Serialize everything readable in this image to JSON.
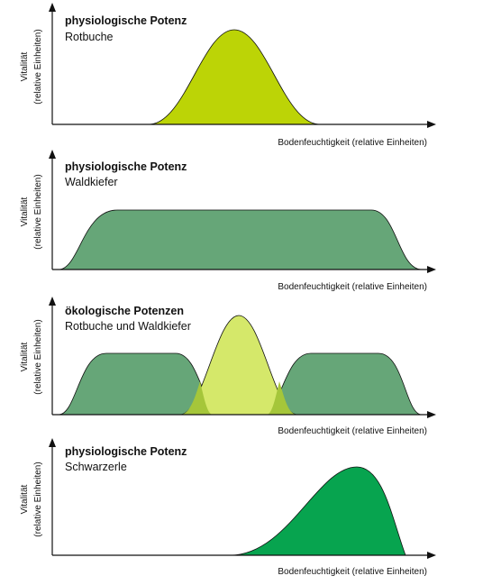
{
  "colors": {
    "rotbuche": "#bcd406",
    "waldkiefer": "#66a678",
    "rotbuche_light": "#d5e86a",
    "overlap": "#a5c63a",
    "schwarzerle": "#07a44f",
    "axis": "#111111"
  },
  "panels": [
    {
      "title": "physiologische Potenz",
      "subtitle": "Rotbuche",
      "y_label_line1": "Vitalität",
      "y_label_line2": "(relative Einheiten)",
      "x_label": "Bodenfeuchtigkeit (relative Einheiten)"
    },
    {
      "title": "physiologische Potenz",
      "subtitle": "Waldkiefer",
      "y_label_line1": "Vitalität",
      "y_label_line2": "(relative Einheiten)",
      "x_label": "Bodenfeuchtigkeit (relative Einheiten)"
    },
    {
      "title": "ökologische Potenzen",
      "subtitle": "Rotbuche und Waldkiefer",
      "y_label_line1": "Vitalität",
      "y_label_line2": "(relative Einheiten)",
      "x_label": "Bodenfeuchtigkeit (relative Einheiten)"
    },
    {
      "title": "physiologische Potenz",
      "subtitle": "Schwarzerle",
      "y_label_line1": "Vitalität",
      "y_label_line2": "(relative Einheiten)",
      "x_label": "Bodenfeuchtigkeit (relative Einheiten)"
    }
  ]
}
